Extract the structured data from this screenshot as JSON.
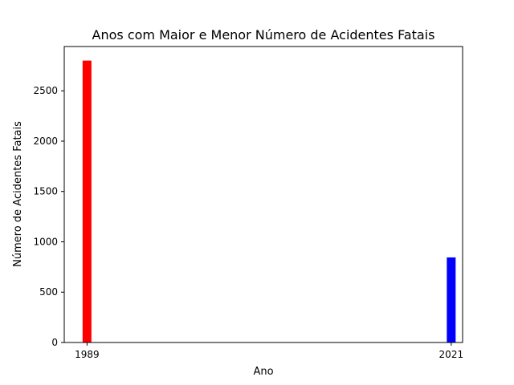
{
  "chart_data": {
    "type": "bar",
    "title": "Anos com Maior e Menor Número de Acidentes Fatais",
    "xlabel": "Ano",
    "ylabel": "Número de Acidentes Fatais",
    "x": [
      1989,
      2021
    ],
    "x_tick_labels": [
      "1989",
      "2021"
    ],
    "xlim": [
      1987,
      2022
    ],
    "values": [
      2800,
      845
    ],
    "bar_colors": [
      "#ff0000",
      "#0000ff"
    ],
    "ylim": [
      0,
      2940
    ],
    "y_ticks": [
      0,
      500,
      1000,
      1500,
      2000,
      2500
    ],
    "y_tick_labels": [
      "0",
      "500",
      "1000",
      "1500",
      "2000",
      "2500"
    ],
    "grid": false,
    "legend": "none"
  }
}
